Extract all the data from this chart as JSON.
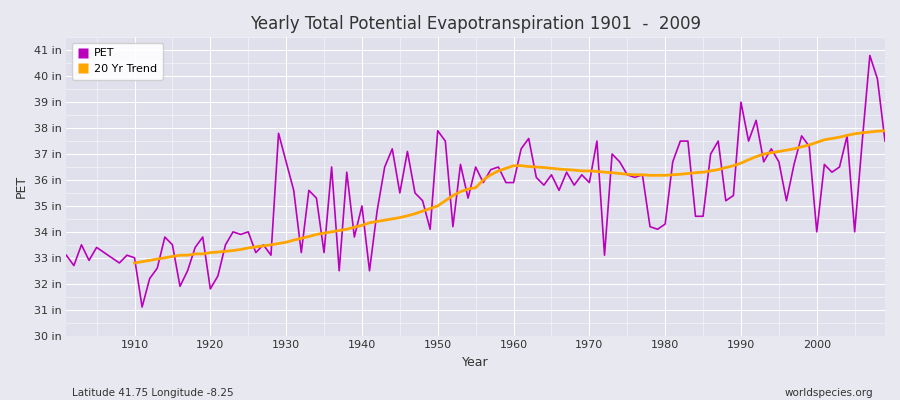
{
  "title": "Yearly Total Potential Evapotranspiration 1901  -  2009",
  "xlabel": "Year",
  "ylabel": "PET",
  "subtitle_left": "Latitude 41.75 Longitude -8.25",
  "subtitle_right": "worldspecies.org",
  "pet_color": "#BB00BB",
  "trend_color": "#FFA500",
  "fig_bg_color": "#E8E8F0",
  "plot_bg_color": "#E0E0EC",
  "ylim": [
    30,
    41.5
  ],
  "yticks": [
    30,
    31,
    32,
    33,
    34,
    35,
    36,
    37,
    38,
    39,
    40,
    41
  ],
  "years": [
    1901,
    1902,
    1903,
    1904,
    1905,
    1906,
    1907,
    1908,
    1909,
    1910,
    1911,
    1912,
    1913,
    1914,
    1915,
    1916,
    1917,
    1918,
    1919,
    1920,
    1921,
    1922,
    1923,
    1924,
    1925,
    1926,
    1927,
    1928,
    1929,
    1930,
    1931,
    1932,
    1933,
    1934,
    1935,
    1936,
    1937,
    1938,
    1939,
    1940,
    1941,
    1942,
    1943,
    1944,
    1945,
    1946,
    1947,
    1948,
    1949,
    1950,
    1951,
    1952,
    1953,
    1954,
    1955,
    1956,
    1957,
    1958,
    1959,
    1960,
    1961,
    1962,
    1963,
    1964,
    1965,
    1966,
    1967,
    1968,
    1969,
    1970,
    1971,
    1972,
    1973,
    1974,
    1975,
    1976,
    1977,
    1978,
    1979,
    1980,
    1981,
    1982,
    1983,
    1984,
    1985,
    1986,
    1987,
    1988,
    1989,
    1990,
    1991,
    1992,
    1993,
    1994,
    1995,
    1996,
    1997,
    1998,
    1999,
    2000,
    2001,
    2002,
    2003,
    2004,
    2005,
    2006,
    2007,
    2008,
    2009
  ],
  "pet_values": [
    33.1,
    32.7,
    33.5,
    32.9,
    33.4,
    33.2,
    33.0,
    32.8,
    33.1,
    33.0,
    31.1,
    32.2,
    32.6,
    33.8,
    33.5,
    31.9,
    32.5,
    33.4,
    33.8,
    31.8,
    32.3,
    33.5,
    34.0,
    33.9,
    34.0,
    33.2,
    33.5,
    33.1,
    37.8,
    36.7,
    35.6,
    33.2,
    35.6,
    35.3,
    33.2,
    36.5,
    32.5,
    36.3,
    33.8,
    35.0,
    32.5,
    34.8,
    36.5,
    37.2,
    35.5,
    37.1,
    35.5,
    35.2,
    34.1,
    37.9,
    37.5,
    34.2,
    36.6,
    35.3,
    36.5,
    35.9,
    36.4,
    36.5,
    35.9,
    35.9,
    37.2,
    37.6,
    36.1,
    35.8,
    36.2,
    35.6,
    36.3,
    35.8,
    36.2,
    35.9,
    37.5,
    33.1,
    37.0,
    36.7,
    36.2,
    36.1,
    36.2,
    34.2,
    34.1,
    34.3,
    36.7,
    37.5,
    37.5,
    34.6,
    34.6,
    37.0,
    37.5,
    35.2,
    35.4,
    39.0,
    37.5,
    38.3,
    36.7,
    37.2,
    36.7,
    35.2,
    36.6,
    37.7,
    37.3,
    34.0,
    36.6,
    36.3,
    36.5,
    37.7,
    34.0,
    37.5,
    40.8,
    39.9,
    37.5
  ],
  "trend_years": [
    1910,
    1911,
    1912,
    1913,
    1914,
    1915,
    1916,
    1917,
    1918,
    1919,
    1920,
    1921,
    1922,
    1923,
    1924,
    1925,
    1926,
    1927,
    1928,
    1929,
    1930,
    1931,
    1932,
    1933,
    1934,
    1935,
    1936,
    1937,
    1938,
    1939,
    1940,
    1941,
    1942,
    1943,
    1944,
    1945,
    1946,
    1947,
    1948,
    1949,
    1950,
    1951,
    1952,
    1953,
    1954,
    1955,
    1956,
    1957,
    1958,
    1959,
    1960,
    1961,
    1962,
    1963,
    1964,
    1965,
    1966,
    1967,
    1968,
    1969,
    1970,
    1971,
    1972,
    1973,
    1974,
    1975,
    1976,
    1977,
    1978,
    1979,
    1980,
    1981,
    1982,
    1983,
    1984,
    1985,
    1986,
    1987,
    1988,
    1989,
    1990,
    1991,
    1992,
    1993,
    1994,
    1995,
    1996,
    1997,
    1998,
    1999,
    2000,
    2001,
    2002,
    2003,
    2004,
    2005,
    2006,
    2007,
    2008,
    2009
  ],
  "trend_values": [
    32.8,
    32.85,
    32.9,
    32.95,
    33.0,
    33.05,
    33.1,
    33.1,
    33.15,
    33.15,
    33.2,
    33.22,
    33.25,
    33.28,
    33.32,
    33.38,
    33.42,
    33.46,
    33.5,
    33.55,
    33.6,
    33.68,
    33.75,
    33.82,
    33.9,
    33.95,
    34.0,
    34.05,
    34.1,
    34.18,
    34.25,
    34.35,
    34.4,
    34.45,
    34.5,
    34.55,
    34.62,
    34.7,
    34.8,
    34.9,
    35.0,
    35.2,
    35.4,
    35.55,
    35.65,
    35.7,
    36.0,
    36.2,
    36.35,
    36.45,
    36.55,
    36.55,
    36.52,
    36.5,
    36.48,
    36.45,
    36.42,
    36.4,
    36.38,
    36.35,
    36.35,
    36.33,
    36.3,
    36.28,
    36.25,
    36.22,
    36.2,
    36.2,
    36.18,
    36.18,
    36.18,
    36.2,
    36.22,
    36.25,
    36.28,
    36.3,
    36.35,
    36.4,
    36.48,
    36.55,
    36.65,
    36.78,
    36.9,
    37.0,
    37.05,
    37.1,
    37.15,
    37.2,
    37.28,
    37.35,
    37.45,
    37.55,
    37.6,
    37.65,
    37.72,
    37.78,
    37.82,
    37.85,
    37.88,
    37.9
  ]
}
